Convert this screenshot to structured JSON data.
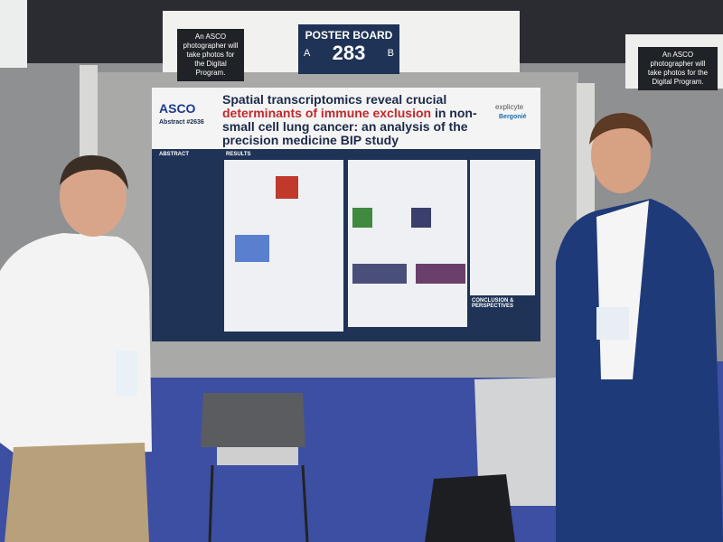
{
  "signs": {
    "left_notice": "An ASCO photographer will take photos for the Digital Program.",
    "poster_board": {
      "label": "POSTER BOARD",
      "side_a": "A",
      "number": "283",
      "side_b": "B"
    },
    "right_notice": "An ASCO photographer will take photos for the Digital Program."
  },
  "poster": {
    "logo": "ASCO",
    "abstract": "Abstract #2636",
    "title": {
      "part1": "Spatial transcriptomics reveal crucial",
      "part2": "determinants",
      "part3": "of immune exclusion",
      "part4": "in non-small cell lung cancer: an analysis of the precision medicine BIP study"
    },
    "sponsors": [
      "explicyte",
      "Bergonié"
    ],
    "sections": {
      "abstract": "ABSTRACT",
      "results": "RESULTS",
      "conclusion": "CONCLUSION & PERSPECTIVES"
    }
  }
}
